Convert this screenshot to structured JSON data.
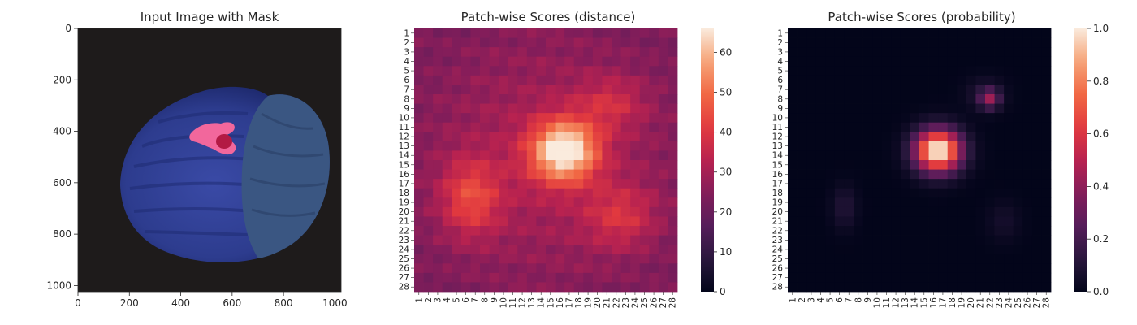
{
  "chart_data": [
    {
      "type": "image",
      "title": "Input Image with Mask",
      "xlim": [
        0,
        1024
      ],
      "ylim": [
        1024,
        0
      ],
      "xticks": [
        "0",
        "200",
        "400",
        "600",
        "800",
        "1000"
      ],
      "yticks": [
        "0",
        "200",
        "400",
        "600",
        "800",
        "1000"
      ],
      "xtick_values": [
        0,
        200,
        400,
        600,
        800,
        1000
      ],
      "ytick_values": [
        0,
        200,
        400,
        600,
        800,
        1000
      ],
      "colors": {
        "background": "#1d1a1a",
        "object": "#34459a",
        "object_dark": "#1e2a6c",
        "cap": "#3b5680",
        "mask": "#f0639a",
        "mask_core": "#b0183f"
      }
    },
    {
      "type": "heatmap",
      "title": "Patch-wise Scores (distance)",
      "rows": 28,
      "cols": 28,
      "xticks": [
        "1",
        "2",
        "3",
        "4",
        "5",
        "6",
        "7",
        "8",
        "9",
        "10",
        "11",
        "12",
        "13",
        "14",
        "15",
        "16",
        "17",
        "18",
        "19",
        "20",
        "21",
        "22",
        "23",
        "24",
        "25",
        "26",
        "27",
        "28"
      ],
      "yticks": [
        "1",
        "2",
        "3",
        "4",
        "5",
        "6",
        "7",
        "8",
        "9",
        "10",
        "11",
        "12",
        "13",
        "14",
        "15",
        "16",
        "17",
        "18",
        "19",
        "20",
        "21",
        "22",
        "23",
        "24",
        "25",
        "26",
        "27",
        "28"
      ],
      "colorbar": {
        "vmin": 0,
        "vmax": 66,
        "ticks": [
          0,
          10,
          20,
          30,
          40,
          50,
          60
        ],
        "tick_labels": [
          "0",
          "10",
          "20",
          "30",
          "40",
          "50",
          "60"
        ]
      },
      "colormap": "rocket",
      "features": [
        {
          "row": 12.5,
          "col": 15.5,
          "amp": 42,
          "sr": 2.2,
          "sc": 2.4
        },
        {
          "row": 17.5,
          "col": 5.5,
          "amp": 17,
          "sr": 2.8,
          "sc": 2.2
        },
        {
          "row": 19.5,
          "col": 21.5,
          "amp": 12,
          "sr": 2.4,
          "sc": 2.6
        },
        {
          "row": 7.5,
          "col": 20.5,
          "amp": 10,
          "sr": 2.0,
          "sc": 2.5
        }
      ],
      "baseline": {
        "center": 33,
        "edge": 24
      }
    },
    {
      "type": "heatmap",
      "title": "Patch-wise Scores (probability)",
      "rows": 28,
      "cols": 28,
      "xticks": [
        "1",
        "2",
        "3",
        "4",
        "5",
        "6",
        "7",
        "8",
        "9",
        "10",
        "11",
        "12",
        "13",
        "14",
        "15",
        "16",
        "17",
        "18",
        "19",
        "20",
        "21",
        "22",
        "23",
        "24",
        "25",
        "26",
        "27",
        "28"
      ],
      "yticks": [
        "1",
        "2",
        "3",
        "4",
        "5",
        "6",
        "7",
        "8",
        "9",
        "10",
        "11",
        "12",
        "13",
        "14",
        "15",
        "16",
        "17",
        "18",
        "19",
        "20",
        "21",
        "22",
        "23",
        "24",
        "25",
        "26",
        "27",
        "28"
      ],
      "colorbar": {
        "vmin": 0,
        "vmax": 1,
        "ticks": [
          0,
          0.2,
          0.4,
          0.6,
          0.8,
          1.0
        ],
        "tick_labels": [
          "0.0",
          "0.2",
          "0.4",
          "0.6",
          "0.8",
          "1.0"
        ]
      },
      "colormap": "rocket",
      "features": [
        {
          "row": 12.5,
          "col": 15.5,
          "amp": 1.05,
          "sr": 1.55,
          "sc": 1.7
        },
        {
          "row": 7,
          "col": 21,
          "amp": 0.35,
          "sr": 0.7,
          "sc": 0.7
        },
        {
          "row": 6.5,
          "col": 20.5,
          "amp": 0.1,
          "sr": 1.2,
          "sc": 1.4
        },
        {
          "row": 18.5,
          "col": 5.5,
          "amp": 0.1,
          "sr": 1.6,
          "sc": 0.9
        },
        {
          "row": 20,
          "col": 22.5,
          "amp": 0.06,
          "sr": 1.5,
          "sc": 1.2
        }
      ]
    }
  ]
}
